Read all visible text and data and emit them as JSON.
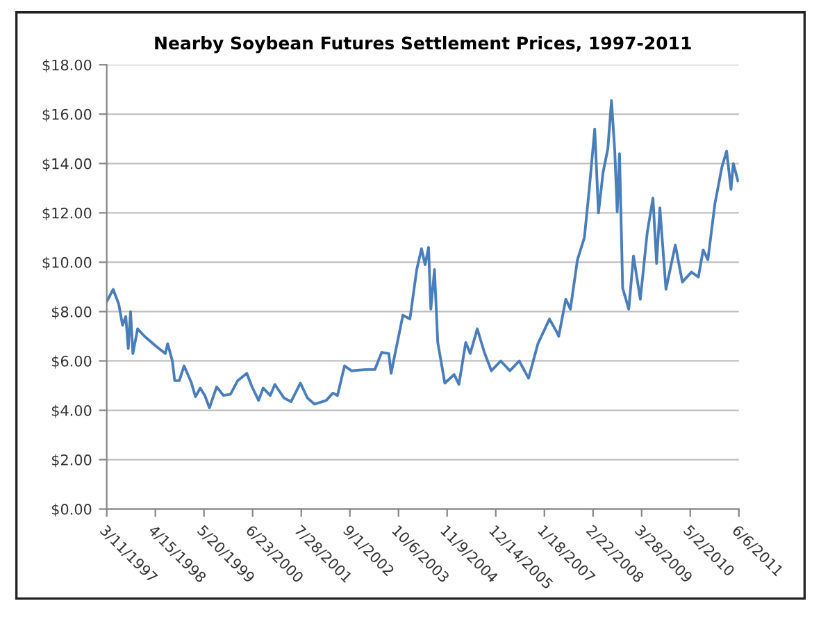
{
  "chart_data": {
    "type": "line",
    "title": "Nearby Soybean Futures Settlement Prices, 1997-2011",
    "series": [
      {
        "color": "#4a7ebb",
        "x": [
          "1997-03-11",
          "1997-05-03",
          "1997-06-18",
          "1997-07-19",
          "1997-08-15",
          "1997-09-04",
          "1997-09-23",
          "1997-10-12",
          "1997-11-20",
          "1998-01-16",
          "1998-04-20",
          "1998-07-06",
          "1998-07-25",
          "1998-09-02",
          "1998-09-21",
          "1998-10-29",
          "1998-12-07",
          "1999-02-03",
          "1999-03-11",
          "1999-04-19",
          "1999-05-27",
          "1999-07-04",
          "1999-09-01",
          "1999-10-28",
          "1999-12-24",
          "2000-02-21",
          "2000-05-06",
          "2000-06-14",
          "2000-08-11",
          "2000-09-18",
          "2000-11-15",
          "2000-12-23",
          "2001-03-08",
          "2001-05-05",
          "2001-07-21",
          "2001-09-17",
          "2001-11-14",
          "2002-02-18",
          "2002-04-15",
          "2002-05-22",
          "2002-07-19",
          "2002-09-15",
          "2003-01-09",
          "2003-03-25",
          "2003-05-21",
          "2003-07-18",
          "2003-08-06",
          "2003-11-11",
          "2004-01-08",
          "2004-03-04",
          "2004-04-12",
          "2004-05-12",
          "2004-06-09",
          "2004-06-28",
          "2004-07-28",
          "2004-08-24",
          "2004-10-21",
          "2005-01-06",
          "2005-02-14",
          "2005-04-11",
          "2005-05-18",
          "2005-07-15",
          "2005-09-11",
          "2005-11-08",
          "2006-01-24",
          "2006-04-09",
          "2006-06-25",
          "2006-09-10",
          "2006-11-26",
          "2007-03-01",
          "2007-04-27",
          "2007-05-16",
          "2007-07-13",
          "2007-08-20",
          "2007-10-17",
          "2007-12-13",
          "2008-01-21",
          "2008-03-07",
          "2008-04-07",
          "2008-05-15",
          "2008-06-23",
          "2008-07-23",
          "2008-08-19",
          "2008-09-08",
          "2008-09-27",
          "2008-10-23",
          "2008-12-12",
          "2009-01-20",
          "2009-03-17",
          "2009-05-13",
          "2009-06-29",
          "2009-07-29",
          "2009-08-25",
          "2009-10-14",
          "2009-12-30",
          "2010-02-26",
          "2010-05-12",
          "2010-07-08",
          "2010-08-16",
          "2010-09-24",
          "2010-11-20",
          "2011-01-17",
          "2011-02-25",
          "2011-04-02",
          "2011-04-21",
          "2011-05-29"
        ],
        "values": [
          8.4,
          8.9,
          8.3,
          7.45,
          7.8,
          6.5,
          8.0,
          6.3,
          7.3,
          7.0,
          6.6,
          6.3,
          6.7,
          6.0,
          5.2,
          5.2,
          5.8,
          5.15,
          4.55,
          4.9,
          4.6,
          4.1,
          4.95,
          4.6,
          4.65,
          5.2,
          5.5,
          5.0,
          4.4,
          4.9,
          4.6,
          5.05,
          4.5,
          4.35,
          5.1,
          4.5,
          4.25,
          4.4,
          4.7,
          4.6,
          5.8,
          5.6,
          5.65,
          5.65,
          6.35,
          6.3,
          5.5,
          7.85,
          7.7,
          9.7,
          10.55,
          9.9,
          10.6,
          8.1,
          9.7,
          6.75,
          5.1,
          5.45,
          5.05,
          6.75,
          6.3,
          7.3,
          6.35,
          5.6,
          6.0,
          5.6,
          6.0,
          5.3,
          6.7,
          7.7,
          7.2,
          7.0,
          8.5,
          8.1,
          10.1,
          11.0,
          12.9,
          15.4,
          12.0,
          13.65,
          14.6,
          16.55,
          14.5,
          12.05,
          14.4,
          8.95,
          8.1,
          10.25,
          8.5,
          11.2,
          12.6,
          9.95,
          12.2,
          8.9,
          10.7,
          9.2,
          9.6,
          9.4,
          10.5,
          10.1,
          12.35,
          13.85,
          14.5,
          12.95,
          14.0,
          13.3
        ]
      }
    ],
    "xlim": [
      "1997-03-11",
      "2011-06-06"
    ],
    "xticks": [
      {
        "value": "1997-03-11",
        "label": "3/11/1997"
      },
      {
        "value": "1998-04-15",
        "label": "4/15/1998"
      },
      {
        "value": "1999-05-20",
        "label": "5/20/1999"
      },
      {
        "value": "2000-06-23",
        "label": "6/23/2000"
      },
      {
        "value": "2001-07-28",
        "label": "7/28/2001"
      },
      {
        "value": "2002-09-01",
        "label": "9/1/2002"
      },
      {
        "value": "2003-10-06",
        "label": "10/6/2003"
      },
      {
        "value": "2004-11-09",
        "label": "11/9/2004"
      },
      {
        "value": "2005-12-14",
        "label": "12/14/2005"
      },
      {
        "value": "2007-01-18",
        "label": "1/18/2007"
      },
      {
        "value": "2008-02-22",
        "label": "2/22/2008"
      },
      {
        "value": "2009-03-28",
        "label": "3/28/2009"
      },
      {
        "value": "2010-05-02",
        "label": "5/2/2010"
      },
      {
        "value": "2011-06-06",
        "label": "6/6/2011"
      }
    ],
    "ylim": [
      0,
      18
    ],
    "yticks": [
      {
        "value": 0,
        "label": "$0.00"
      },
      {
        "value": 2,
        "label": "$2.00"
      },
      {
        "value": 4,
        "label": "$4.00"
      },
      {
        "value": 6,
        "label": "$6.00"
      },
      {
        "value": 8,
        "label": "$8.00"
      },
      {
        "value": 10,
        "label": "$10.00"
      },
      {
        "value": 12,
        "label": "$12.00"
      },
      {
        "value": 14,
        "label": "$14.00"
      },
      {
        "value": 16,
        "label": "$16.00"
      },
      {
        "value": 18,
        "label": "$18.00"
      }
    ],
    "grid": "y",
    "legend": false,
    "marker": "none",
    "line_style": "solid"
  }
}
